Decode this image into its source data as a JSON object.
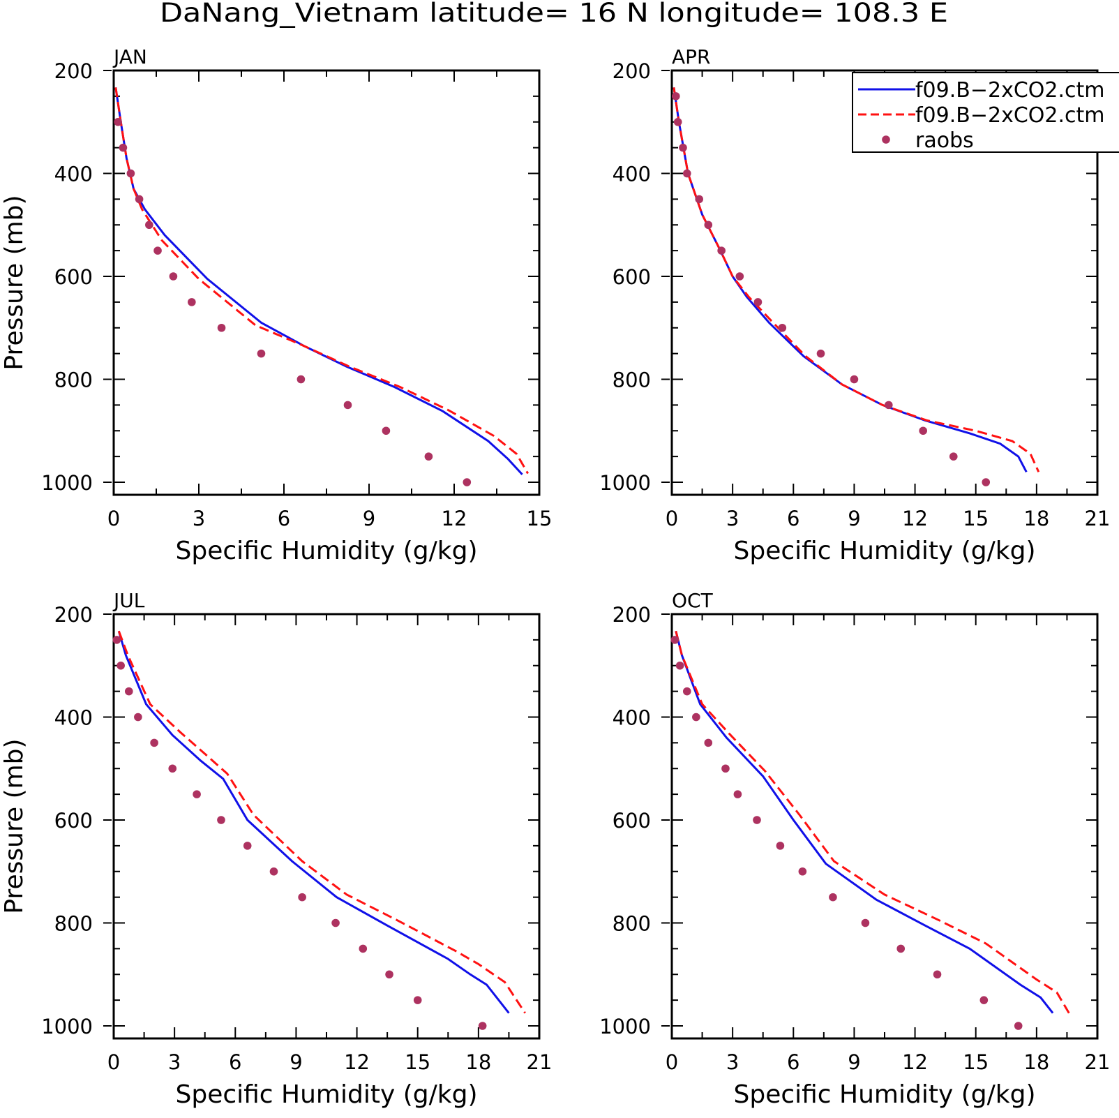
{
  "title": "DaNang_Vietnam  latitude= 16 N longitude= 108.3 E",
  "colors": {
    "model_a": "#1010e8",
    "model_b": "#ff1111",
    "raobs": "#ad3260",
    "axes": "#000000"
  },
  "legend": {
    "placement": "top-right of APR panel (clipped at page edge)",
    "items": [
      {
        "label": "f09.B−2xCO2.ctm",
        "style": "solid",
        "color": "#1010e8"
      },
      {
        "label": "f09.B−2xCO2.ctm",
        "style": "dashed",
        "color": "#ff1111"
      },
      {
        "label": "raobs",
        "style": "marker",
        "color": "#ad3260"
      }
    ]
  },
  "chart_data": [
    {
      "type": "line",
      "panel": "JAN",
      "xlabel": "Specific Humidity (g/kg)",
      "ylabel": "Pressure (mb)",
      "xlim": [
        0,
        15
      ],
      "ylim": [
        1000,
        200
      ],
      "y_reversed": true,
      "xticks": [
        0,
        3,
        6,
        9,
        12,
        15
      ],
      "yticks": [
        200,
        400,
        600,
        800,
        1000
      ],
      "series": [
        {
          "name": "f09.B−2xCO2.ctm",
          "style": "solid",
          "x": [
            0.07,
            0.25,
            0.45,
            0.7,
            1.1,
            1.8,
            3.3,
            5.2,
            6.7,
            8.2,
            9.9,
            11.6,
            13.2,
            13.9,
            14.4
          ],
          "y": [
            233,
            300,
            370,
            430,
            470,
            520,
            605,
            690,
            735,
            775,
            815,
            862,
            920,
            955,
            985
          ]
        },
        {
          "name": "f09.B−2xCO2.ctm",
          "style": "dashed",
          "x": [
            0.07,
            0.25,
            0.45,
            0.7,
            1.0,
            1.7,
            3.0,
            5.0,
            6.7,
            8.3,
            10.1,
            11.8,
            13.4,
            14.2,
            14.6
          ],
          "y": [
            233,
            300,
            370,
            430,
            470,
            530,
            605,
            695,
            735,
            775,
            815,
            860,
            910,
            945,
            983
          ]
        },
        {
          "name": "raobs",
          "style": "marker",
          "x": [
            0.15,
            0.33,
            0.6,
            0.9,
            1.25,
            1.55,
            2.1,
            2.75,
            3.8,
            5.2,
            6.6,
            8.25,
            9.6,
            11.1,
            12.45
          ],
          "y": [
            300,
            350,
            400,
            450,
            500,
            550,
            600,
            650,
            700,
            750,
            800,
            850,
            900,
            950,
            1000
          ]
        }
      ]
    },
    {
      "type": "line",
      "panel": "APR",
      "xlabel": "Specific Humidity (g/kg)",
      "ylabel": "",
      "xlim": [
        0,
        21
      ],
      "ylim": [
        1000,
        200
      ],
      "y_reversed": true,
      "xticks": [
        0,
        3,
        6,
        9,
        12,
        15,
        18,
        21
      ],
      "yticks": [
        200,
        400,
        600,
        800,
        1000
      ],
      "series": [
        {
          "name": "f09.B−2xCO2.ctm",
          "style": "solid",
          "x": [
            0.1,
            0.35,
            0.8,
            1.5,
            2.4,
            3.0,
            3.7,
            4.8,
            6.5,
            8.4,
            10.4,
            12.5,
            14.7,
            16.2,
            17.1,
            17.5
          ],
          "y": [
            233,
            300,
            400,
            480,
            550,
            600,
            640,
            690,
            755,
            810,
            850,
            880,
            905,
            925,
            950,
            980
          ]
        },
        {
          "name": "f09.B−2xCO2.ctm",
          "style": "dashed",
          "x": [
            0.1,
            0.35,
            0.8,
            1.5,
            2.4,
            3.0,
            3.8,
            5.0,
            6.6,
            8.4,
            10.4,
            12.6,
            15.0,
            16.8,
            17.7,
            18.1
          ],
          "y": [
            233,
            300,
            400,
            480,
            550,
            600,
            640,
            690,
            755,
            810,
            850,
            880,
            900,
            920,
            945,
            980
          ]
        },
        {
          "name": "raobs",
          "style": "marker",
          "x": [
            0.2,
            0.3,
            0.55,
            0.75,
            1.35,
            1.8,
            2.45,
            3.35,
            4.25,
            5.45,
            7.35,
            9.0,
            10.7,
            12.4,
            13.9,
            15.5
          ],
          "y": [
            250,
            300,
            350,
            400,
            450,
            500,
            550,
            600,
            650,
            700,
            750,
            800,
            850,
            900,
            950,
            1000
          ]
        }
      ]
    },
    {
      "type": "line",
      "panel": "JUL",
      "xlabel": "Specific Humidity (g/kg)",
      "ylabel": "Pressure (mb)",
      "xlim": [
        0,
        21
      ],
      "ylim": [
        1000,
        200
      ],
      "y_reversed": true,
      "xticks": [
        0,
        3,
        6,
        9,
        12,
        15,
        18,
        21
      ],
      "yticks": [
        200,
        400,
        600,
        800,
        1000
      ],
      "series": [
        {
          "name": "f09.B−2xCO2.ctm",
          "style": "solid",
          "x": [
            0.25,
            0.6,
            1.6,
            2.9,
            4.3,
            5.4,
            6.6,
            8.8,
            11.0,
            13.5,
            16.5,
            17.6,
            18.4,
            19.5
          ],
          "y": [
            233,
            280,
            375,
            435,
            485,
            520,
            600,
            680,
            750,
            805,
            870,
            900,
            920,
            975
          ]
        },
        {
          "name": "f09.B−2xCO2.ctm",
          "style": "dashed",
          "x": [
            0.25,
            0.7,
            1.8,
            3.3,
            4.6,
            5.6,
            6.9,
            9.3,
            11.5,
            14.0,
            16.9,
            18.0,
            19.3,
            20.3
          ],
          "y": [
            233,
            280,
            375,
            430,
            475,
            510,
            590,
            680,
            745,
            795,
            855,
            880,
            915,
            975
          ]
        },
        {
          "name": "raobs",
          "style": "marker",
          "x": [
            0.15,
            0.35,
            0.75,
            1.2,
            2.0,
            2.9,
            4.1,
            5.3,
            6.6,
            7.9,
            9.3,
            10.95,
            12.3,
            13.6,
            15.0,
            18.2
          ],
          "y": [
            250,
            300,
            350,
            400,
            450,
            500,
            550,
            600,
            650,
            700,
            750,
            800,
            850,
            900,
            950,
            1000
          ]
        }
      ]
    },
    {
      "type": "line",
      "panel": "OCT",
      "xlabel": "Specific Humidity (g/kg)",
      "ylabel": "",
      "xlim": [
        0,
        21
      ],
      "ylim": [
        1000,
        200
      ],
      "y_reversed": true,
      "xticks": [
        0,
        3,
        6,
        9,
        12,
        15,
        18,
        21
      ],
      "yticks": [
        200,
        400,
        600,
        800,
        1000
      ],
      "series": [
        {
          "name": "f09.B−2xCO2.ctm",
          "style": "solid",
          "x": [
            0.2,
            0.5,
            1.4,
            2.7,
            4.5,
            6.0,
            7.6,
            10.1,
            12.5,
            14.7,
            17.2,
            18.2,
            18.8
          ],
          "y": [
            233,
            280,
            375,
            440,
            515,
            600,
            685,
            755,
            805,
            850,
            920,
            945,
            975
          ]
        },
        {
          "name": "f09.B−2xCO2.ctm",
          "style": "dashed",
          "x": [
            0.2,
            0.5,
            1.5,
            2.9,
            4.6,
            6.3,
            8.0,
            10.5,
            13.2,
            15.5,
            18.0,
            19.0,
            19.6
          ],
          "y": [
            233,
            280,
            375,
            435,
            505,
            590,
            680,
            745,
            795,
            840,
            910,
            935,
            975
          ]
        },
        {
          "name": "raobs",
          "style": "marker",
          "x": [
            0.15,
            0.4,
            0.75,
            1.2,
            1.8,
            2.65,
            3.25,
            4.2,
            5.35,
            6.45,
            7.95,
            9.55,
            11.3,
            13.1,
            15.4,
            17.1
          ],
          "y": [
            250,
            300,
            350,
            400,
            450,
            500,
            550,
            600,
            650,
            700,
            750,
            800,
            850,
            900,
            950,
            1000
          ]
        }
      ]
    }
  ]
}
